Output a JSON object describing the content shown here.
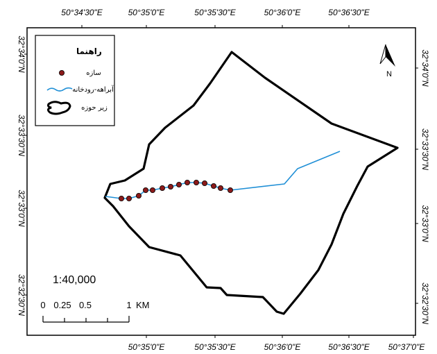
{
  "top_ticks": [
    "50°34'30\"E",
    "50°35'0\"E",
    "50°35'30\"E",
    "50°36'0\"E",
    "50°36'30\"E"
  ],
  "bottom_ticks": [
    "50°35'0\"E",
    "50°35'30\"E",
    "50°36'0\"E",
    "50°36'30\"E",
    "50°37'0\"E"
  ],
  "left_ticks": [
    "32°34'0\"N",
    "32°33'30\"N",
    "32°33'0\"N",
    "32°32'30\"N"
  ],
  "right_ticks": [
    "32°34'0\"N",
    "32°33'30\"N",
    "32°33'0\"N",
    "32°32'30\"N"
  ],
  "legend": {
    "title": "راهنما",
    "items": [
      {
        "label": "سازه",
        "symbol": "point"
      },
      {
        "label": "آبراهه-رودخانه",
        "symbol": "line"
      },
      {
        "label": "زیر حوزه",
        "symbol": "polygon"
      }
    ]
  },
  "scale": {
    "ratio": "1:40,000",
    "labels": [
      "0",
      "0.25",
      "0.5",
      "1",
      "KM"
    ]
  },
  "north_label": "N",
  "colors": {
    "boundary": "#000000",
    "river": "#1f8fd6",
    "structure": "#8b1a1a"
  },
  "structures_count": 14
}
